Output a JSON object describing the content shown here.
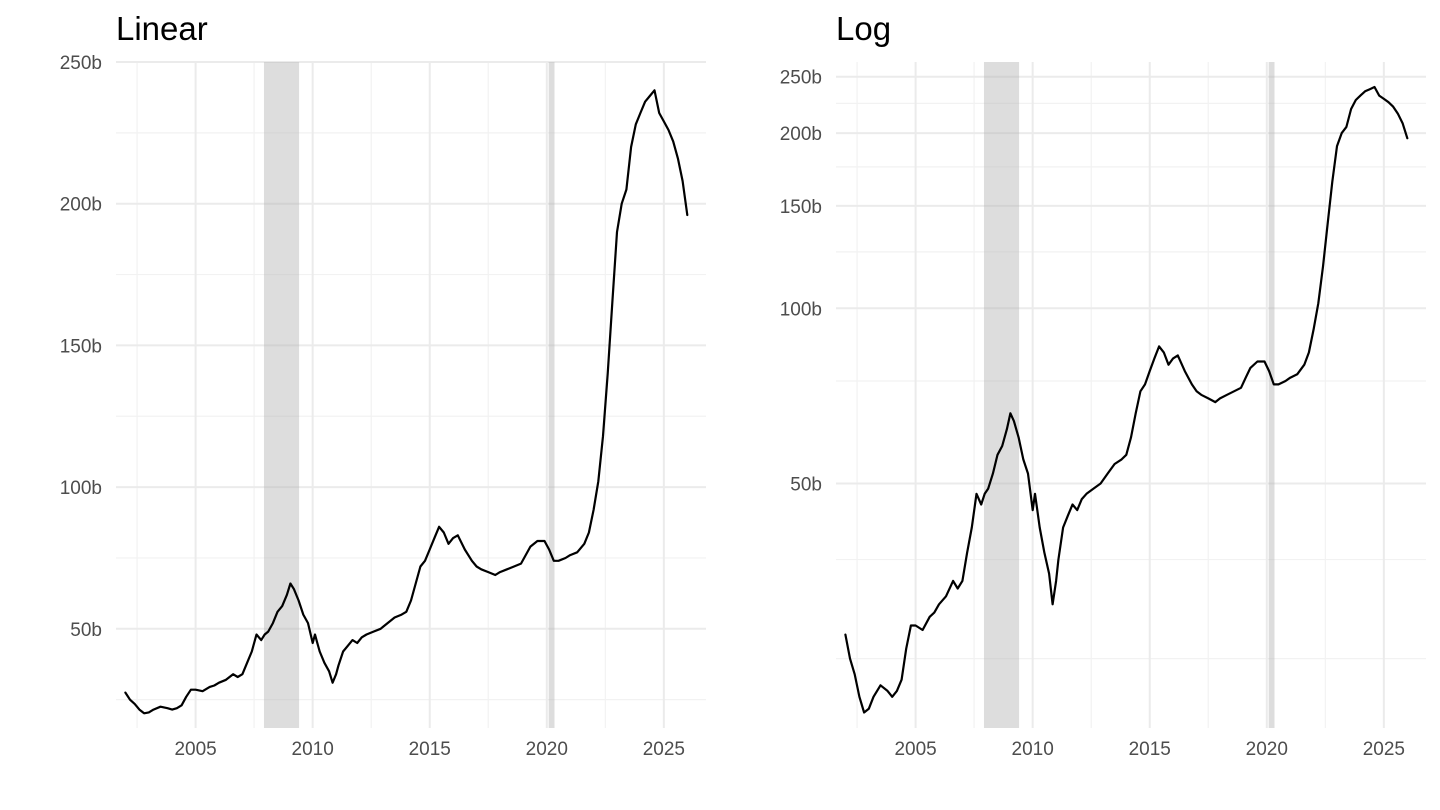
{
  "chart_data": [
    {
      "type": "line",
      "title": "Linear",
      "xlabel": "",
      "ylabel": "",
      "scale": "linear",
      "xlim": [
        2001.6,
        2026.8
      ],
      "ylim": [
        15,
        250
      ],
      "x_ticks": [
        2005,
        2010,
        2015,
        2020,
        2025
      ],
      "x_tick_labels": [
        "2005",
        "2010",
        "2015",
        "2020",
        "2025"
      ],
      "y_ticks": [
        50,
        100,
        150,
        200,
        250
      ],
      "y_tick_labels": [
        "50b",
        "100b",
        "150b",
        "200b",
        "250b"
      ],
      "y_minor": [
        25,
        75,
        125,
        175,
        225
      ],
      "grid": true,
      "legend": "none"
    },
    {
      "type": "line",
      "title": "Log",
      "xlabel": "",
      "ylabel": "",
      "scale": "log",
      "xlim": [
        2001.6,
        2026.8
      ],
      "ylim": [
        19,
        265
      ],
      "x_ticks": [
        2005,
        2010,
        2015,
        2020,
        2025
      ],
      "x_tick_labels": [
        "2005",
        "2010",
        "2015",
        "2020",
        "2025"
      ],
      "y_ticks": [
        50,
        100,
        150,
        200,
        250
      ],
      "y_tick_labels": [
        "50b",
        "100b",
        "150b",
        "200b",
        "250b"
      ],
      "y_minor": [
        25,
        37,
        75,
        125,
        175,
        225
      ],
      "grid": true,
      "legend": "none"
    }
  ],
  "recessions": [
    [
      2007.92,
      2009.42
    ],
    [
      2020.08,
      2020.33
    ]
  ],
  "series": {
    "name": "",
    "unit": "billions",
    "x": [
      2002.0,
      2002.2,
      2002.4,
      2002.6,
      2002.8,
      2003.0,
      2003.2,
      2003.5,
      2003.8,
      2004.0,
      2004.2,
      2004.4,
      2004.6,
      2004.8,
      2005.0,
      2005.3,
      2005.6,
      2005.8,
      2006.0,
      2006.3,
      2006.6,
      2006.8,
      2007.0,
      2007.2,
      2007.4,
      2007.6,
      2007.8,
      2007.95,
      2008.1,
      2008.3,
      2008.5,
      2008.7,
      2008.9,
      2009.05,
      2009.2,
      2009.4,
      2009.6,
      2009.8,
      2010.0,
      2010.1,
      2010.2,
      2010.3,
      2010.5,
      2010.7,
      2010.85,
      2011.0,
      2011.1,
      2011.3,
      2011.5,
      2011.7,
      2011.9,
      2012.1,
      2012.3,
      2012.6,
      2012.9,
      2013.2,
      2013.5,
      2013.8,
      2014.0,
      2014.2,
      2014.4,
      2014.6,
      2014.8,
      2015.0,
      2015.2,
      2015.4,
      2015.6,
      2015.8,
      2016.0,
      2016.2,
      2016.5,
      2016.8,
      2017.0,
      2017.2,
      2017.5,
      2017.8,
      2018.0,
      2018.3,
      2018.6,
      2018.9,
      2019.1,
      2019.3,
      2019.6,
      2019.9,
      2020.1,
      2020.3,
      2020.5,
      2020.8,
      2021.0,
      2021.3,
      2021.6,
      2021.8,
      2022.0,
      2022.2,
      2022.4,
      2022.6,
      2022.8,
      2023.0,
      2023.2,
      2023.4,
      2023.6,
      2023.8,
      2024.0,
      2024.2,
      2024.4,
      2024.6,
      2024.8,
      2025.0,
      2025.2,
      2025.4,
      2025.6,
      2025.8,
      2026.0
    ],
    "values": [
      27.5,
      25,
      23.5,
      21.5,
      20.2,
      20.5,
      21.5,
      22.5,
      22,
      21.5,
      22,
      23,
      26,
      28.5,
      28.5,
      28,
      29.5,
      30,
      31,
      32,
      34,
      33,
      34,
      38,
      42,
      48,
      46,
      48,
      49,
      52,
      56,
      58,
      62,
      66,
      64,
      60,
      55,
      52,
      45,
      48,
      45,
      42,
      38,
      35,
      31,
      34,
      37,
      42,
      44,
      46,
      45,
      47,
      48,
      49,
      50,
      52,
      54,
      55,
      56,
      60,
      66,
      72,
      74,
      78,
      82,
      86,
      84,
      80,
      82,
      83,
      78,
      74,
      72,
      71,
      70,
      69,
      70,
      71,
      72,
      73,
      76,
      79,
      81,
      81,
      78,
      74,
      74,
      75,
      76,
      77,
      80,
      84,
      92,
      102,
      118,
      140,
      165,
      190,
      200,
      205,
      220,
      228,
      232,
      236,
      238,
      240,
      232,
      229,
      226,
      222,
      216,
      208,
      196
    ]
  },
  "colors": {
    "line": "#000000",
    "recession": "#b3b3b3",
    "grid": "#ebebeb",
    "tick_text": "#4d4d4d"
  }
}
